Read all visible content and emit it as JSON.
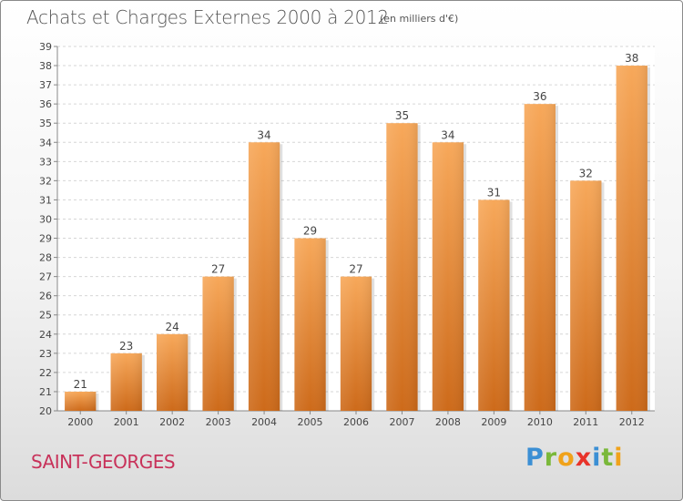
{
  "header": {
    "title": "Achats et Charges Externes 2000 à 2012",
    "subtitle": "(en milliers d'€)"
  },
  "footer": {
    "place": "SAINT-GEORGES",
    "logo_letters": [
      {
        "ch": "P",
        "color": "#3b8fd4"
      },
      {
        "ch": "r",
        "color": "#7ab83a"
      },
      {
        "ch": "o",
        "color": "#f0a21a"
      },
      {
        "ch": "x",
        "color": "#e8332a"
      },
      {
        "ch": "i",
        "color": "#3b8fd4"
      },
      {
        "ch": "t",
        "color": "#7ab83a"
      },
      {
        "ch": "i",
        "color": "#f0a21a"
      }
    ]
  },
  "chart_data": {
    "type": "bar",
    "title": "Achats et Charges Externes 2000 à 2012",
    "subtitle": "(en milliers d'€)",
    "categories": [
      "2000",
      "2001",
      "2002",
      "2003",
      "2004",
      "2005",
      "2006",
      "2007",
      "2008",
      "2009",
      "2010",
      "2011",
      "2012"
    ],
    "values": [
      21,
      23,
      24,
      27,
      34,
      29,
      27,
      35,
      34,
      31,
      36,
      32,
      38
    ],
    "ylim": [
      20,
      39
    ],
    "yticks": [
      20,
      21,
      22,
      23,
      24,
      25,
      26,
      27,
      28,
      29,
      30,
      31,
      32,
      33,
      34,
      35,
      36,
      37,
      38,
      39
    ],
    "grid": true,
    "bar_color": "#f0953a",
    "bar_color_dark": "#cd6a1a"
  }
}
